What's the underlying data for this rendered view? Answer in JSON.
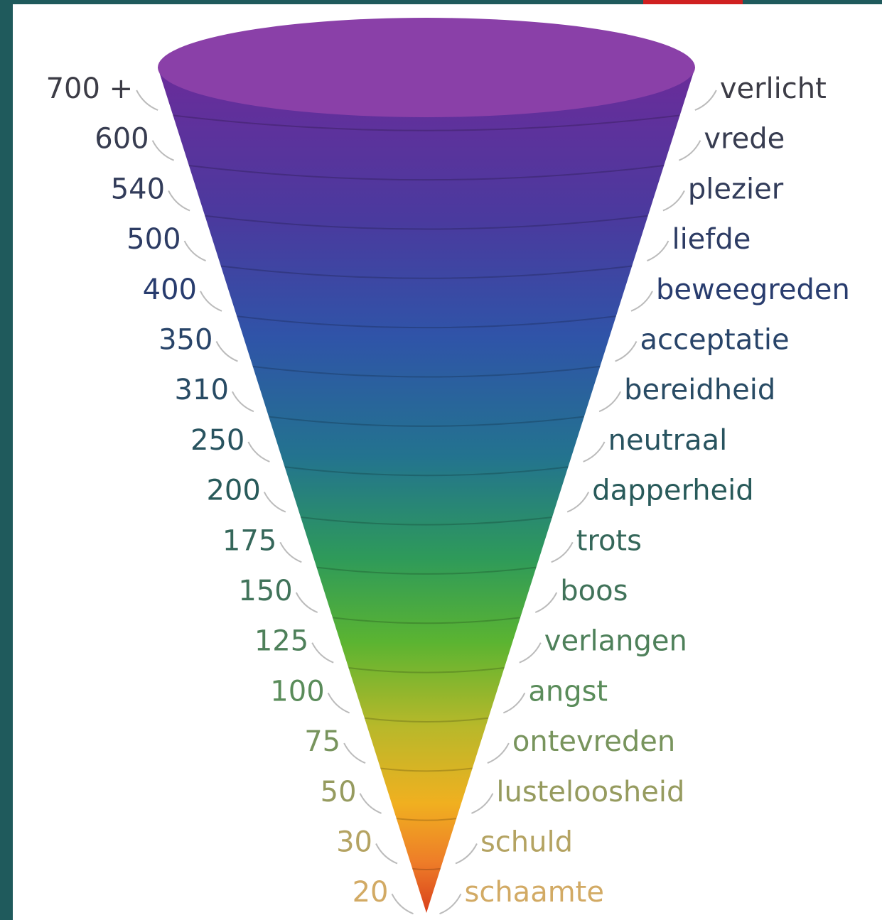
{
  "levels": [
    {
      "score": "700 +",
      "label": "verlicht"
    },
    {
      "score": "600",
      "label": "vrede"
    },
    {
      "score": "540",
      "label": "plezier"
    },
    {
      "score": "500",
      "label": "liefde"
    },
    {
      "score": "400",
      "label": "beweegreden"
    },
    {
      "score": "350",
      "label": "acceptatie"
    },
    {
      "score": "310",
      "label": "bereidheid"
    },
    {
      "score": "250",
      "label": "neutraal"
    },
    {
      "score": "200",
      "label": "dapperheid"
    },
    {
      "score": "175",
      "label": "trots"
    },
    {
      "score": "150",
      "label": "boos"
    },
    {
      "score": "125",
      "label": "verlangen"
    },
    {
      "score": "100",
      "label": "angst"
    },
    {
      "score": "75",
      "label": "ontevreden"
    },
    {
      "score": "50",
      "label": "lusteloosheid"
    },
    {
      "score": "30",
      "label": "schuld"
    },
    {
      "score": "20",
      "label": "schaamte"
    }
  ]
}
